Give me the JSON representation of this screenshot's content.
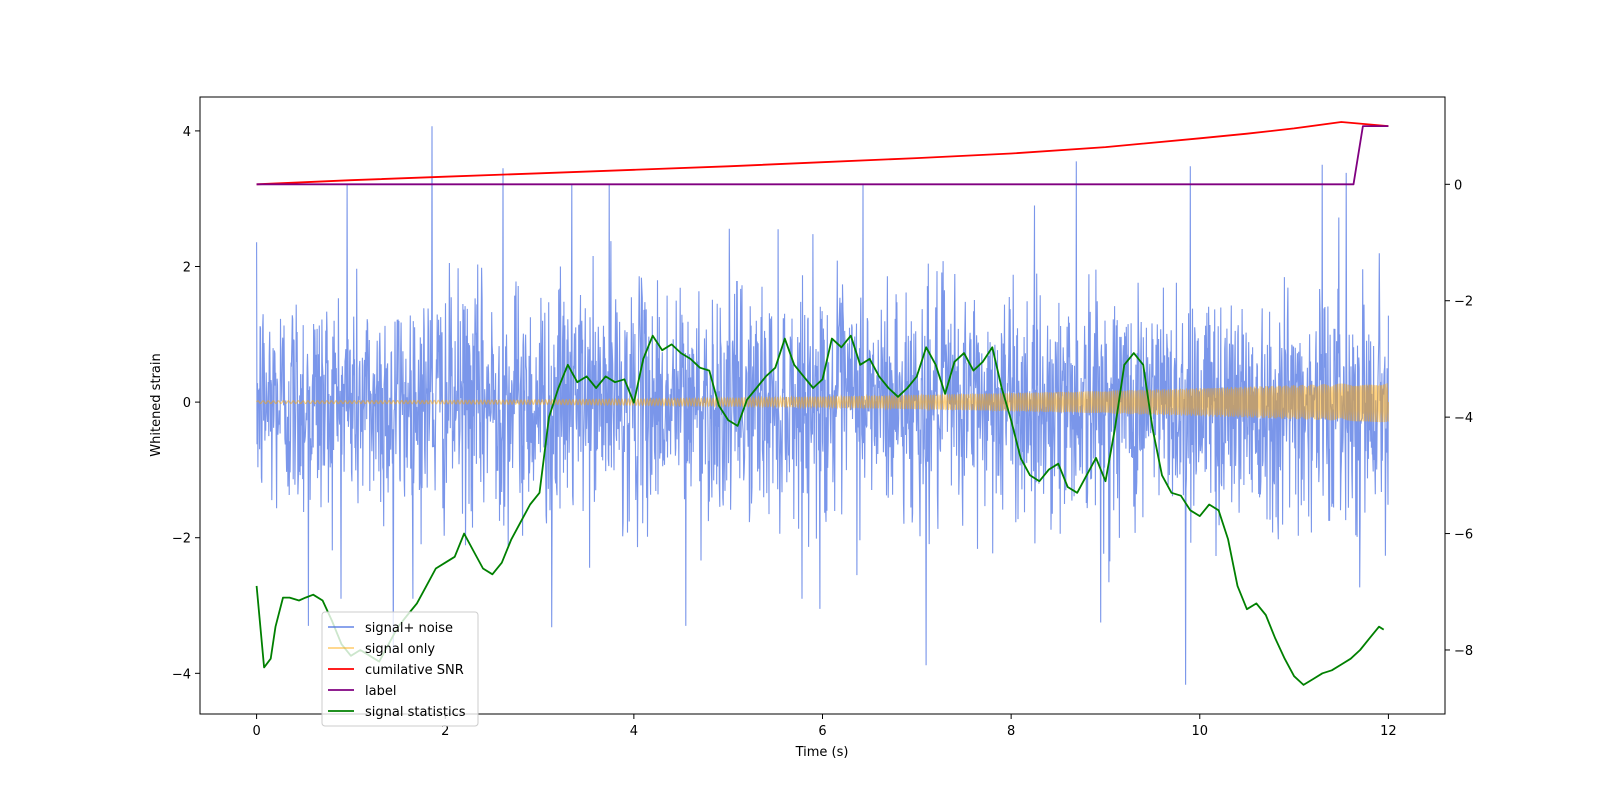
{
  "chart_data": {
    "type": "line",
    "xlabel": "Time (s)",
    "ylabel": "Whitened strain",
    "xlim": [
      -0.6,
      12.6
    ],
    "ylim_left": [
      -4.6,
      4.5
    ],
    "ylim_right": [
      -9.1,
      1.5
    ],
    "xticks": [
      0,
      2,
      4,
      6,
      8,
      10,
      12
    ],
    "yticks_left": [
      -4,
      -2,
      0,
      2,
      4
    ],
    "yticks_right": [
      -8,
      -6,
      -4,
      -2,
      0
    ],
    "grid": false,
    "legend_placement": "lower-left",
    "series": [
      {
        "name": "signal+ noise",
        "color": "#4169e1",
        "axis": "left",
        "style": "noise",
        "duration": 12,
        "std": 0.85,
        "spikes": [
          [
            1.86,
            4.07
          ],
          [
            2.61,
            3.45
          ],
          [
            3.34,
            3.22
          ],
          [
            3.74,
            3.22
          ],
          [
            0.96,
            3.22
          ],
          [
            6.43,
            3.22
          ],
          [
            8.69,
            3.55
          ],
          [
            9.9,
            3.48
          ],
          [
            11.3,
            3.5
          ],
          [
            11.55,
            3.38
          ],
          [
            1.45,
            -3.7
          ],
          [
            3.13,
            -3.32
          ],
          [
            4.55,
            -3.3
          ],
          [
            7.1,
            -3.88
          ],
          [
            9.85,
            -4.17
          ],
          [
            0.55,
            -3.3
          ],
          [
            5.97,
            -3.05
          ],
          [
            8.95,
            -3.25
          ]
        ]
      },
      {
        "name": "signal only",
        "color": "#ffa500",
        "axis": "left",
        "style": "chirp",
        "duration": 12,
        "amplitude_start": 0.02,
        "amplitude_end": 0.3
      },
      {
        "name": "cumilative SNR",
        "color": "#ff0000",
        "axis": "right",
        "x": [
          0,
          1,
          2,
          3,
          4,
          5,
          6,
          7,
          8,
          9,
          10,
          10.5,
          11,
          11.5,
          12
        ],
        "y": [
          0,
          0.07,
          0.13,
          0.19,
          0.25,
          0.31,
          0.38,
          0.45,
          0.53,
          0.64,
          0.79,
          0.87,
          0.96,
          1.07,
          1.0
        ]
      },
      {
        "name": "label",
        "color": "#800080",
        "axis": "right",
        "x": [
          0,
          11.63,
          11.73,
          12
        ],
        "y": [
          0,
          0,
          1.0,
          1.0
        ]
      },
      {
        "name": "signal statistics",
        "color": "#008000",
        "axis": "right",
        "x": [
          0,
          0.08,
          0.15,
          0.2,
          0.28,
          0.35,
          0.45,
          0.52,
          0.6,
          0.7,
          0.8,
          0.9,
          1.0,
          1.1,
          1.2,
          1.3,
          1.4,
          1.5,
          1.6,
          1.7,
          1.8,
          1.9,
          2.0,
          2.1,
          2.2,
          2.3,
          2.4,
          2.5,
          2.6,
          2.7,
          2.8,
          2.9,
          3.0,
          3.1,
          3.2,
          3.3,
          3.4,
          3.5,
          3.6,
          3.7,
          3.8,
          3.9,
          4.0,
          4.1,
          4.2,
          4.3,
          4.4,
          4.5,
          4.6,
          4.7,
          4.8,
          4.9,
          5.0,
          5.1,
          5.2,
          5.3,
          5.4,
          5.5,
          5.6,
          5.7,
          5.8,
          5.9,
          6.0,
          6.1,
          6.2,
          6.3,
          6.4,
          6.5,
          6.6,
          6.7,
          6.8,
          6.9,
          7.0,
          7.1,
          7.2,
          7.3,
          7.4,
          7.5,
          7.6,
          7.7,
          7.8,
          7.9,
          8.0,
          8.1,
          8.2,
          8.3,
          8.4,
          8.5,
          8.6,
          8.7,
          8.8,
          8.9,
          9.0,
          9.1,
          9.2,
          9.3,
          9.4,
          9.5,
          9.6,
          9.7,
          9.8,
          9.9,
          10.0,
          10.1,
          10.2,
          10.3,
          10.4,
          10.5,
          10.6,
          10.7,
          10.8,
          10.9,
          11.0,
          11.1,
          11.2,
          11.3,
          11.4,
          11.5,
          11.6,
          11.7,
          11.8,
          11.9,
          11.95
        ],
        "y": [
          -6.9,
          -8.3,
          -8.15,
          -7.6,
          -7.1,
          -7.1,
          -7.15,
          -7.1,
          -7.05,
          -7.15,
          -7.5,
          -7.9,
          -8.1,
          -8.0,
          -8.1,
          -8.2,
          -7.9,
          -7.6,
          -7.4,
          -7.2,
          -6.9,
          -6.6,
          -6.5,
          -6.4,
          -6.0,
          -6.3,
          -6.6,
          -6.7,
          -6.5,
          -6.1,
          -5.8,
          -5.5,
          -5.3,
          -4.0,
          -3.5,
          -3.1,
          -3.4,
          -3.3,
          -3.5,
          -3.3,
          -3.4,
          -3.35,
          -3.75,
          -3.0,
          -2.6,
          -2.85,
          -2.75,
          -2.9,
          -3.0,
          -3.15,
          -3.2,
          -3.8,
          -4.05,
          -4.15,
          -3.7,
          -3.5,
          -3.3,
          -3.15,
          -2.65,
          -3.1,
          -3.3,
          -3.5,
          -3.35,
          -2.65,
          -2.8,
          -2.6,
          -3.1,
          -3.0,
          -3.3,
          -3.5,
          -3.65,
          -3.5,
          -3.3,
          -2.8,
          -3.1,
          -3.6,
          -3.05,
          -2.9,
          -3.2,
          -3.05,
          -2.8,
          -3.5,
          -4.05,
          -4.7,
          -5.0,
          -5.1,
          -4.9,
          -4.8,
          -5.2,
          -5.3,
          -5.0,
          -4.7,
          -5.1,
          -4.2,
          -3.1,
          -2.9,
          -3.1,
          -4.2,
          -5.0,
          -5.3,
          -5.35,
          -5.6,
          -5.7,
          -5.5,
          -5.6,
          -6.1,
          -6.9,
          -7.3,
          -7.2,
          -7.4,
          -7.8,
          -8.15,
          -8.45,
          -8.6,
          -8.5,
          -8.4,
          -8.35,
          -8.25,
          -8.15,
          -8.0,
          -7.8,
          -7.6,
          -7.65
        ]
      }
    ]
  }
}
